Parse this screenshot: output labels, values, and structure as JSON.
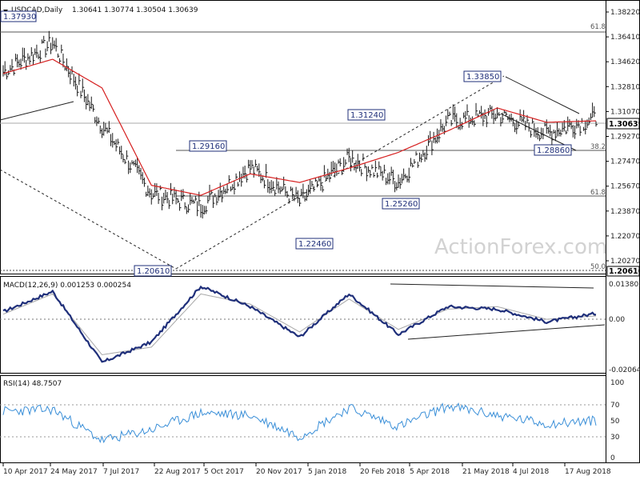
{
  "header": {
    "symbol": "USDCAD,Daily",
    "ohlc": "1.30641 1.30774 1.30504 1.30639",
    "macd_title": "MACD(12,26,9) 0.001253 0.000254",
    "rsi_title": "RSI(14) 48.7507",
    "watermark": "ActionForex.com"
  },
  "colors": {
    "bars": "#1a1a1a",
    "ma": "#d62020",
    "macd": "#1f2f7a",
    "signal": "#a8a8a8",
    "rsi": "#3a8fd8",
    "labels": "#1f2f7a"
  },
  "chart_data": [
    {
      "type": "line",
      "title": "USDCAD,Daily",
      "subtitle": "1.30641 1.30774 1.30504 1.30639",
      "x_ticks": [
        "10 Apr 2017",
        "24 May 2017",
        "7 Jul 2017",
        "22 Aug 2017",
        "5 Oct 2017",
        "20 Nov 2017",
        "5 Jan 2018",
        "20 Feb 2018",
        "5 Apr 2018",
        "21 May 2018",
        "4 Jul 2018",
        "17 Aug 2018"
      ],
      "y_ticks": [
        "1.38220",
        "1.36410",
        "1.34620",
        "1.32810",
        "1.31070",
        "1.29270",
        "1.27470",
        "1.25670",
        "1.23870",
        "1.22070",
        "1.20270"
      ],
      "ylim": [
        1.1995,
        1.386
      ],
      "last_price": "1.30639",
      "series": [
        {
          "name": "Close",
          "x": [
            "10 Apr 2017",
            "24 May 2017",
            "7 Jul 2017",
            "22 Aug 2017",
            "5 Oct 2017",
            "20 Nov 2017",
            "5 Jan 2018",
            "20 Feb 2018",
            "5 Apr 2018",
            "21 May 2018",
            "4 Jul 2018",
            "17 Aug 2018",
            "28 Aug 2018"
          ],
          "values": [
            1.339,
            1.359,
            1.301,
            1.254,
            1.245,
            1.272,
            1.248,
            1.278,
            1.262,
            1.304,
            1.309,
            1.296,
            1.3064
          ]
        },
        {
          "x": [
            "10 Apr 2017",
            "24 May 2017",
            "7 Jul 2017",
            "22 Aug 2017",
            "5 Oct 2017",
            "20 Nov 2017",
            "5 Jan 2018",
            "20 Feb 2018",
            "5 Apr 2018",
            "21 May 2018",
            "4 Jul 2018",
            "17 Aug 2018",
            "28 Aug 2018"
          ],
          "values": [
            1.338,
            1.348,
            1.328,
            1.26,
            1.253,
            1.268,
            1.262,
            1.272,
            1.283,
            1.298,
            1.314,
            1.304,
            1.305
          ]
        }
      ],
      "levels": [
        {
          "value": 1.3793,
          "label": "1.37930"
        },
        {
          "value": 1.3665,
          "label": "61.8"
        },
        {
          "value": 1.3385,
          "label": "1.33850"
        },
        {
          "value": 1.3124,
          "label": "1.31240"
        },
        {
          "value": 1.2916,
          "label": "1.29160"
        },
        {
          "value": 1.2886,
          "label": "1.28860"
        },
        {
          "value": 1.289,
          "label": "38.2"
        },
        {
          "value": 1.26,
          "label": "61.8"
        },
        {
          "value": 1.2526,
          "label": "1.25260"
        },
        {
          "value": 1.2246,
          "label": "1.22460"
        },
        {
          "value": 1.2061,
          "label": "1.20610"
        },
        {
          "value": 1.2061,
          "label": "50.0"
        }
      ]
    },
    {
      "type": "line",
      "title": "MACD(12,26,9) 0.001253 0.000254",
      "y_ticks": [
        "0.013802",
        "0.00",
        "-0.020648"
      ],
      "ylim": [
        -0.0215,
        0.0145
      ],
      "series": [
        {
          "x": [
            "10 Apr 2017",
            "24 May 2017",
            "7 Jul 2017",
            "22 Aug 2017",
            "5 Oct 2017",
            "20 Nov 2017",
            "5 Jan 2018",
            "20 Feb 2018",
            "5 Apr 2018",
            "21 May 2018",
            "4 Jul 2018",
            "17 Aug 2018",
            "28 Aug 2018"
          ],
          "values": [
            0.002,
            0.01,
            -0.018,
            -0.01,
            0.012,
            0.004,
            -0.008,
            0.009,
            -0.007,
            0.004,
            0.003,
            -0.002,
            0.0013
          ]
        },
        {
          "x": [
            "10 Apr 2017",
            "24 May 2017",
            "7 Jul 2017",
            "22 Aug 2017",
            "5 Oct 2017",
            "20 Nov 2017",
            "5 Jan 2018",
            "20 Feb 2018",
            "5 Apr 2018",
            "21 May 2018",
            "4 Jul 2018",
            "17 Aug 2018",
            "28 Aug 2018"
          ],
          "values": [
            0.001,
            0.009,
            -0.015,
            -0.012,
            0.009,
            0.005,
            -0.006,
            0.007,
            -0.005,
            0.003,
            0.004,
            -0.001,
            0.0003
          ]
        }
      ]
    },
    {
      "type": "line",
      "title": "RSI(14) 48.7507",
      "y_ticks": [
        "100",
        "70",
        "50",
        "30",
        "0"
      ],
      "ylim": [
        0,
        100
      ],
      "series": [
        {
          "name": "RSI(14)",
          "x": [
            "10 Apr 2017",
            "24 May 2017",
            "7 Jul 2017",
            "22 Aug 2017",
            "5 Oct 2017",
            "20 Nov 2017",
            "5 Jan 2018",
            "20 Feb 2018",
            "5 Apr 2018",
            "21 May 2018",
            "4 Jul 2018",
            "17 Aug 2018",
            "28 Aug 2018"
          ],
          "values": [
            60,
            62,
            25,
            38,
            58,
            55,
            30,
            64,
            42,
            66,
            55,
            45,
            48.75
          ]
        }
      ]
    }
  ]
}
